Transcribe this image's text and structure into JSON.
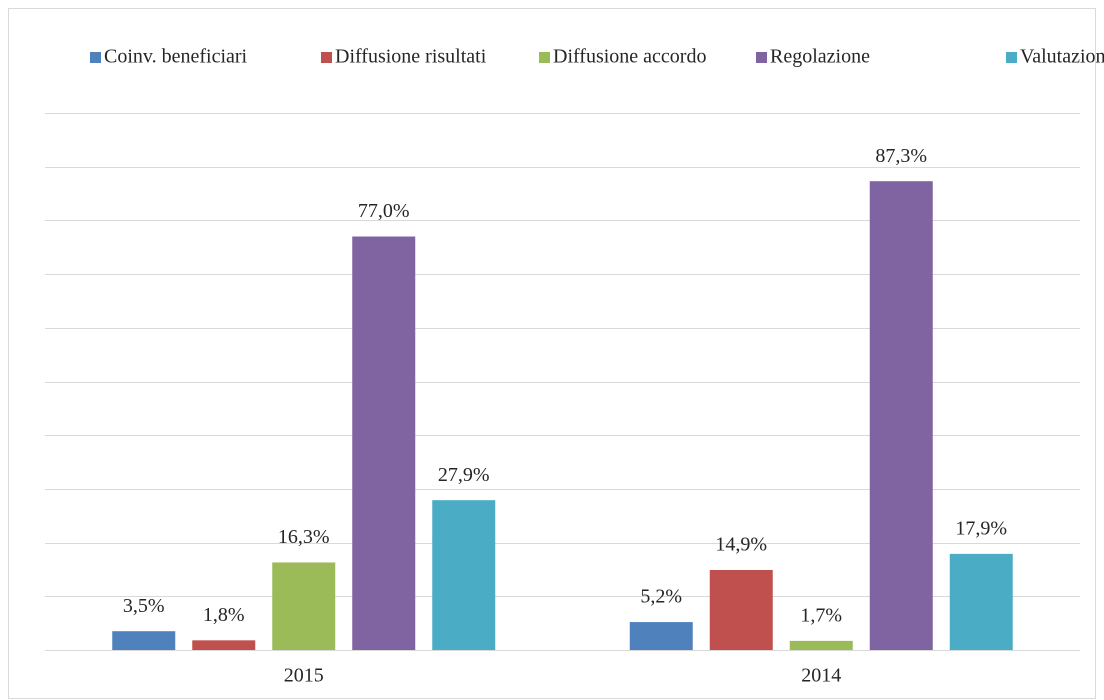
{
  "chart_data": {
    "type": "bar",
    "categories": [
      "2015",
      "2014"
    ],
    "series": [
      {
        "name": "Coinv. beneficiari",
        "color": "#4f81bd",
        "values": [
          3.5,
          5.2
        ],
        "value_labels": [
          "3,5%",
          "5,2%"
        ]
      },
      {
        "name": "Diffusione risultati",
        "color": "#c0504d",
        "values": [
          1.8,
          14.9
        ],
        "value_labels": [
          "1,8%",
          "14,9%"
        ]
      },
      {
        "name": "Diffusione accordo",
        "color": "#9bbb59",
        "values": [
          16.3,
          1.7
        ],
        "value_labels": [
          "16,3%",
          "1,7%"
        ]
      },
      {
        "name": "Regolazione",
        "color": "#8064a2",
        "values": [
          77.0,
          87.3
        ],
        "value_labels": [
          "77,0%",
          "87,3%"
        ]
      },
      {
        "name": "Valutazione",
        "color": "#4bacc6",
        "values": [
          27.9,
          17.9
        ],
        "value_labels": [
          "27,9%",
          "17,9%"
        ]
      }
    ],
    "ylim": [
      0,
      100
    ],
    "yticks": [
      0,
      10,
      20,
      30,
      40,
      50,
      60,
      70,
      80,
      90,
      100
    ],
    "grid": true,
    "legend": "top"
  }
}
